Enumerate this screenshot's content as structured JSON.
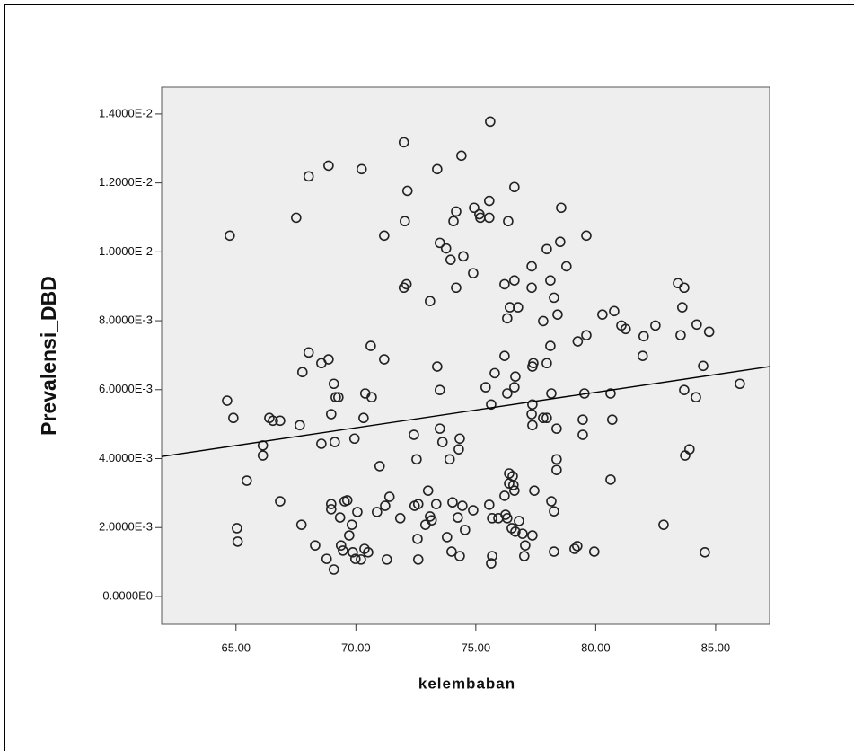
{
  "chart_data": {
    "type": "scatter",
    "x_label": "kelembaban",
    "y_label": "Prevalensi_DBD",
    "marker_color": "#222222",
    "background": "#eeeeee",
    "xlim": [
      61.9,
      87.25
    ],
    "ylim": [
      -0.00081,
      0.01478
    ],
    "xticks": [
      {
        "value": 65,
        "label": "65.00"
      },
      {
        "value": 70,
        "label": "70.00"
      },
      {
        "value": 75,
        "label": "75.00"
      },
      {
        "value": 80,
        "label": "80.00"
      },
      {
        "value": 85,
        "label": "85.00"
      }
    ],
    "yticks": [
      {
        "value": 0,
        "label": "0.0000E0"
      },
      {
        "value": 0.002,
        "label": "2.0000E-3"
      },
      {
        "value": 0.004,
        "label": "4.0000E-3"
      },
      {
        "value": 0.006,
        "label": "6.0000E-3"
      },
      {
        "value": 0.008,
        "label": "8.0000E-3"
      },
      {
        "value": 0.01,
        "label": "1.0000E-2"
      },
      {
        "value": 0.012,
        "label": "1.2000E-2"
      },
      {
        "value": 0.014,
        "label": "1.4000E-2"
      }
    ],
    "x": [
      64.74,
      64.63,
      64.89,
      65.04,
      65.07,
      66.39,
      66.54,
      66.84,
      66.12,
      66.12,
      65.45,
      66.84,
      67.51,
      68.03,
      68.86,
      70.24,
      67.77,
      68.03,
      68.56,
      68.86,
      69.08,
      69.16,
      69.27,
      68.97,
      67.66,
      68.56,
      69.12,
      69.94,
      70.32,
      70.39,
      70.66,
      70.62,
      71.18,
      71.18,
      67.73,
      68.3,
      68.78,
      69.08,
      68.97,
      68.97,
      69.34,
      69.53,
      69.64,
      69.83,
      69.72,
      69.38,
      69.46,
      69.87,
      69.98,
      70.36,
      70.21,
      70.06,
      70.51,
      70.99,
      71.22,
      71.4,
      70.88,
      71.29,
      71.85,
      72.45,
      72.0,
      72.15,
      72.04,
      72.0,
      72.11,
      73.09,
      73.39,
      74.4,
      73.39,
      73.5,
      73.5,
      72.42,
      72.53,
      73.5,
      73.76,
      73.95,
      74.18,
      74.07,
      74.18,
      74.48,
      74.89,
      73.61,
      74.33,
      74.29,
      73.91,
      73.01,
      72.6,
      73.35,
      73.09,
      73.16,
      72.9,
      72.57,
      72.6,
      74.03,
      74.44,
      74.25,
      74.55,
      74.89,
      73.8,
      73.99,
      74.33,
      74.93,
      75.15,
      75.56,
      75.6,
      75.56,
      76.61,
      76.35,
      75.19,
      77.96,
      78.56,
      78.52,
      78.78,
      79.61,
      77.33,
      76.61,
      76.2,
      77.33,
      78.11,
      78.26,
      76.42,
      76.76,
      76.31,
      77.81,
      78.41,
      78.11,
      79.25,
      79.61,
      80.28,
      80.77,
      81.07,
      81.25,
      76.2,
      77.4,
      77.36,
      77.96,
      75.79,
      76.65,
      75.41,
      76.61,
      76.31,
      75.64,
      77.36,
      77.33,
      77.81,
      77.96,
      78.37,
      77.36,
      79.46,
      78.15,
      79.53,
      78.37,
      78.37,
      76.39,
      76.54,
      76.39,
      76.57,
      76.2,
      76.61,
      75.56,
      75.68,
      75.94,
      76.24,
      76.31,
      76.5,
      76.8,
      76.95,
      77.06,
      77.36,
      76.65,
      75.68,
      75.64,
      77.02,
      78.15,
      78.26,
      77.44,
      78.26,
      79.12,
      79.23,
      79.94,
      79.46,
      80.69,
      81.96,
      80.62,
      82.83,
      82.0,
      82.49,
      83.43,
      83.69,
      83.61,
      83.54,
      84.21,
      84.73,
      83.69,
      84.18,
      84.48,
      83.73,
      83.91,
      84.55,
      86.01,
      80.62
    ],
    "values": [
      0.01047,
      0.00568,
      0.00518,
      0.00198,
      0.00159,
      0.00518,
      0.0051,
      0.0051,
      0.00438,
      0.00409,
      0.00336,
      0.00276,
      0.01099,
      0.01219,
      0.0125,
      0.0124,
      0.00651,
      0.00708,
      0.00677,
      0.00688,
      0.00617,
      0.00578,
      0.00578,
      0.00529,
      0.00497,
      0.00443,
      0.00448,
      0.00458,
      0.00518,
      0.00589,
      0.00578,
      0.00727,
      0.00688,
      0.01047,
      0.00208,
      0.00148,
      0.00109,
      0.00078,
      0.00268,
      0.00253,
      0.00229,
      0.00276,
      0.00279,
      0.00208,
      0.00177,
      0.00148,
      0.00133,
      0.00128,
      0.00109,
      0.00138,
      0.00107,
      0.00245,
      0.00128,
      0.00378,
      0.00263,
      0.00289,
      0.00245,
      0.00107,
      0.00227,
      0.00263,
      0.01318,
      0.01177,
      0.01089,
      0.00896,
      0.00906,
      0.00857,
      0.0124,
      0.01279,
      0.00667,
      0.00599,
      0.00487,
      0.00469,
      0.00398,
      0.01026,
      0.0101,
      0.00977,
      0.00896,
      0.01089,
      0.01117,
      0.00987,
      0.00938,
      0.00448,
      0.00458,
      0.00427,
      0.00398,
      0.00307,
      0.00268,
      0.00268,
      0.00232,
      0.00221,
      0.00208,
      0.00167,
      0.00107,
      0.00273,
      0.00263,
      0.00229,
      0.00193,
      0.0025,
      0.00172,
      0.0013,
      0.00117,
      0.01128,
      0.01109,
      0.01099,
      0.01378,
      0.01148,
      0.01188,
      0.01089,
      0.01099,
      0.01008,
      0.01128,
      0.01029,
      0.00958,
      0.01047,
      0.00958,
      0.00917,
      0.00906,
      0.00896,
      0.00917,
      0.00867,
      0.00839,
      0.00839,
      0.00807,
      0.00799,
      0.00818,
      0.00727,
      0.0074,
      0.00758,
      0.00818,
      0.00828,
      0.00786,
      0.00776,
      0.00698,
      0.00677,
      0.00667,
      0.00677,
      0.00648,
      0.00638,
      0.00607,
      0.00607,
      0.00589,
      0.00557,
      0.00557,
      0.00529,
      0.00518,
      0.00518,
      0.00487,
      0.00497,
      0.00469,
      0.00589,
      0.00589,
      0.00398,
      0.00367,
      0.00357,
      0.00349,
      0.00328,
      0.00323,
      0.00292,
      0.00307,
      0.00266,
      0.00227,
      0.00227,
      0.00237,
      0.00227,
      0.00198,
      0.00219,
      0.00182,
      0.00148,
      0.00177,
      0.00188,
      0.00117,
      0.00096,
      0.00117,
      0.00276,
      0.00247,
      0.00307,
      0.0013,
      0.00138,
      0.00146,
      0.0013,
      0.00513,
      0.00513,
      0.00698,
      0.00339,
      0.00208,
      0.00755,
      0.00786,
      0.00909,
      0.00896,
      0.00839,
      0.00758,
      0.00789,
      0.00768,
      0.00599,
      0.00578,
      0.00669,
      0.00409,
      0.00427,
      0.00128,
      0.00617,
      0.00589
    ],
    "fit_line": {
      "x": [
        61.9,
        87.25
      ],
      "values": [
        0.00406,
        0.00667
      ]
    }
  }
}
